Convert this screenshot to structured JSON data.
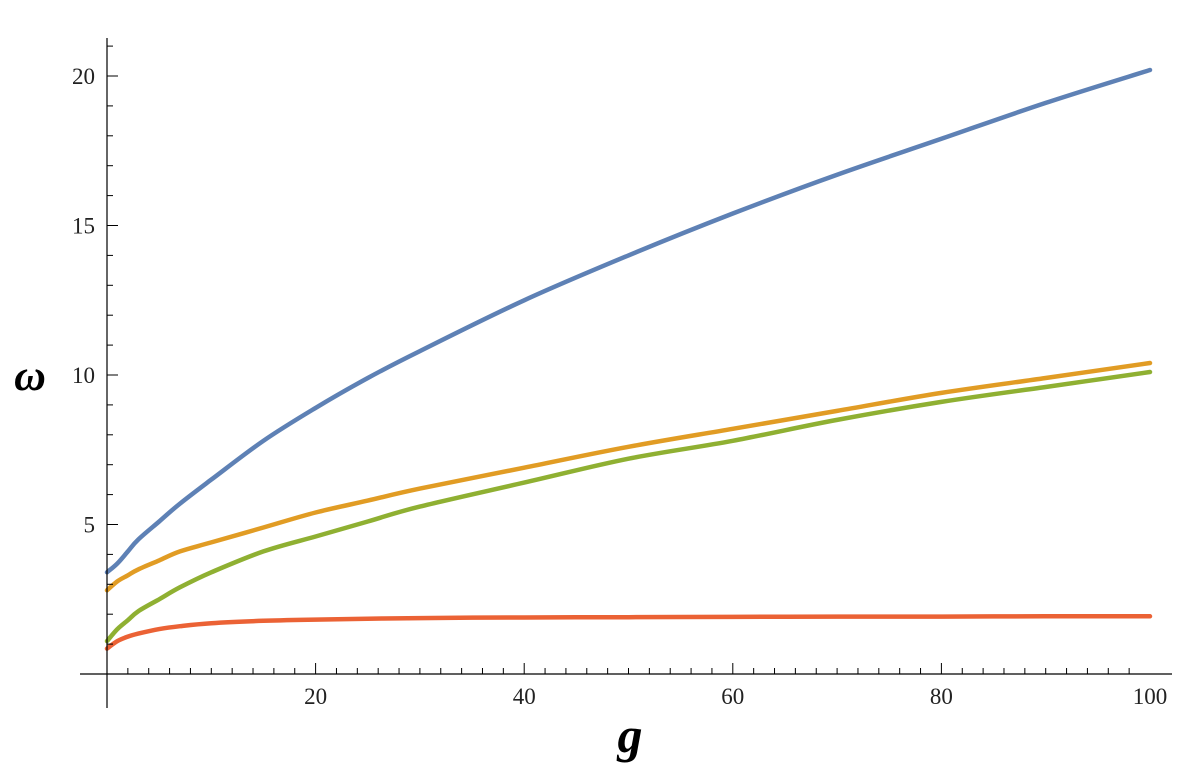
{
  "chart_data": {
    "type": "line",
    "title": "",
    "xlabel": "g",
    "ylabel": "ω",
    "xlim": [
      0,
      100
    ],
    "ylim": [
      0,
      21.2
    ],
    "x_ticks": [
      20,
      40,
      60,
      80,
      100
    ],
    "y_ticks": [
      5,
      10,
      15,
      20
    ],
    "grid": false,
    "legend": "none",
    "series": [
      {
        "color": "#5e81b5",
        "x": [
          0,
          1,
          2,
          3,
          5,
          7,
          10,
          15,
          20,
          25,
          30,
          40,
          50,
          60,
          70,
          80,
          90,
          100
        ],
        "y": [
          3.4,
          3.7,
          4.1,
          4.5,
          5.1,
          5.7,
          6.5,
          7.8,
          8.9,
          9.9,
          10.8,
          12.5,
          14.0,
          15.4,
          16.7,
          17.9,
          19.1,
          20.2
        ]
      },
      {
        "color": "#e19c24",
        "x": [
          0,
          1,
          2,
          3,
          5,
          7,
          10,
          15,
          20,
          25,
          30,
          40,
          50,
          60,
          70,
          80,
          90,
          100
        ],
        "y": [
          2.8,
          3.1,
          3.3,
          3.5,
          3.8,
          4.1,
          4.4,
          4.9,
          5.4,
          5.8,
          6.2,
          6.9,
          7.6,
          8.2,
          8.8,
          9.4,
          9.9,
          10.4
        ]
      },
      {
        "color": "#8fb032",
        "x": [
          0,
          1,
          2,
          3,
          5,
          7,
          10,
          15,
          20,
          25,
          30,
          40,
          50,
          60,
          70,
          80,
          90,
          100
        ],
        "y": [
          1.1,
          1.5,
          1.8,
          2.1,
          2.5,
          2.9,
          3.4,
          4.1,
          4.6,
          5.1,
          5.6,
          6.4,
          7.2,
          7.8,
          8.5,
          9.1,
          9.6,
          10.1
        ]
      },
      {
        "color": "#eb6235",
        "x": [
          0,
          1,
          2,
          3,
          5,
          7,
          10,
          15,
          20,
          30,
          40,
          50,
          60,
          70,
          80,
          90,
          100
        ],
        "y": [
          0.85,
          1.1,
          1.25,
          1.35,
          1.5,
          1.6,
          1.7,
          1.78,
          1.82,
          1.87,
          1.89,
          1.9,
          1.91,
          1.92,
          1.92,
          1.93,
          1.93
        ]
      }
    ]
  }
}
